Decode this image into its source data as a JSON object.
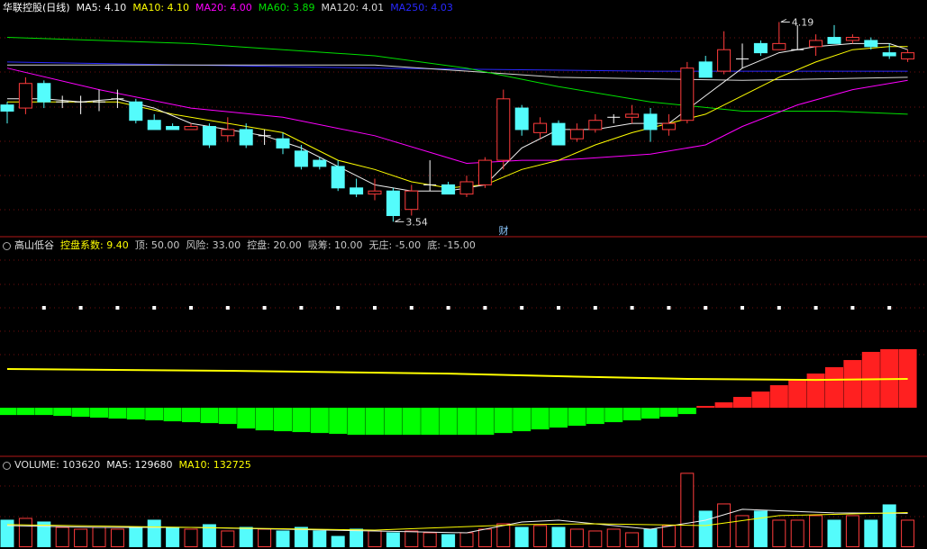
{
  "chart_data": [
    {
      "type": "candlestick",
      "title": "华联控股(日线)",
      "open": [
        3.92,
        3.91,
        3.99,
        3.93,
        3.93,
        3.93,
        3.94,
        3.93,
        3.87,
        3.85,
        3.84,
        3.85,
        3.82,
        3.84,
        3.82,
        3.81,
        3.77,
        3.74,
        3.72,
        3.65,
        3.63,
        3.64,
        3.58,
        3.66,
        3.66,
        3.63,
        3.66,
        3.74,
        3.91,
        3.83,
        3.86,
        3.81,
        3.84,
        3.88,
        3.88,
        3.89,
        3.84,
        3.87,
        4.06,
        4.03,
        4.07,
        4.12,
        4.1,
        4.1,
        4.11,
        4.14,
        4.13,
        4.13,
        4.09,
        4.07
      ],
      "high": [
        3.93,
        4.01,
        4.0,
        3.95,
        3.95,
        3.97,
        3.97,
        3.94,
        3.89,
        3.86,
        3.86,
        3.86,
        3.88,
        3.86,
        3.84,
        3.83,
        3.79,
        3.75,
        3.74,
        3.68,
        3.68,
        3.65,
        3.66,
        3.74,
        3.67,
        3.69,
        3.75,
        3.97,
        3.92,
        3.88,
        3.87,
        3.86,
        3.89,
        3.89,
        3.92,
        3.91,
        3.89,
        4.06,
        4.08,
        4.16,
        4.12,
        4.13,
        4.19,
        4.18,
        4.15,
        4.18,
        4.15,
        4.14,
        4.12,
        4.1
      ],
      "low": [
        3.86,
        3.89,
        3.91,
        3.91,
        3.89,
        3.9,
        3.91,
        3.86,
        3.84,
        3.84,
        3.84,
        3.78,
        3.8,
        3.78,
        3.79,
        3.76,
        3.71,
        3.71,
        3.64,
        3.62,
        3.61,
        3.54,
        3.56,
        3.64,
        3.63,
        3.62,
        3.65,
        3.71,
        3.82,
        3.81,
        3.79,
        3.8,
        3.83,
        3.86,
        3.86,
        3.8,
        3.82,
        3.86,
        4.01,
        4.02,
        4.04,
        4.08,
        4.1,
        4.1,
        4.08,
        4.12,
        4.12,
        4.1,
        4.07,
        4.06
      ],
      "close": [
        3.9,
        3.99,
        3.93,
        3.93,
        3.93,
        3.93,
        3.94,
        3.87,
        3.84,
        3.84,
        3.85,
        3.79,
        3.84,
        3.79,
        3.82,
        3.78,
        3.72,
        3.72,
        3.65,
        3.63,
        3.64,
        3.56,
        3.64,
        3.66,
        3.63,
        3.67,
        3.74,
        3.94,
        3.84,
        3.86,
        3.79,
        3.84,
        3.87,
        3.88,
        3.89,
        3.84,
        3.86,
        4.04,
        4.01,
        4.1,
        4.07,
        4.09,
        4.12,
        4.1,
        4.13,
        4.12,
        4.14,
        4.11,
        4.08,
        4.09
      ],
      "colors": {
        "up": "#ff3c3c",
        "down": "#54fcfc",
        "flat": "#ffffff"
      },
      "ylim": [
        3.5,
        4.25
      ],
      "lines": [
        {
          "name": "MA5",
          "label": "4.10",
          "color": "#f0f0f0",
          "x": [
            0,
            2,
            4,
            6,
            8,
            10,
            12,
            14,
            16,
            18,
            20,
            22,
            24,
            26,
            28,
            30,
            32,
            34,
            36,
            38,
            40,
            42,
            44,
            46,
            48,
            49
          ],
          "values": [
            3.94,
            3.94,
            3.93,
            3.94,
            3.91,
            3.86,
            3.84,
            3.82,
            3.78,
            3.72,
            3.66,
            3.64,
            3.64,
            3.66,
            3.78,
            3.84,
            3.84,
            3.86,
            3.86,
            3.95,
            4.04,
            4.09,
            4.11,
            4.12,
            4.12,
            4.1
          ]
        },
        {
          "name": "MA10",
          "label": "4.10",
          "color": "#ffff00",
          "x": [
            0,
            3,
            6,
            9,
            12,
            15,
            18,
            20,
            22,
            24,
            26,
            28,
            30,
            32,
            34,
            36,
            38,
            40,
            42,
            44,
            46,
            48,
            49
          ],
          "values": [
            3.93,
            3.93,
            3.93,
            3.89,
            3.86,
            3.83,
            3.74,
            3.71,
            3.67,
            3.65,
            3.66,
            3.71,
            3.74,
            3.79,
            3.83,
            3.86,
            3.89,
            3.95,
            4.01,
            4.06,
            4.1,
            4.11,
            4.11
          ]
        },
        {
          "name": "MA20",
          "label": "4.00",
          "color": "#ff00ff",
          "x": [
            0,
            5,
            10,
            15,
            20,
            25,
            28,
            30,
            35,
            38,
            40,
            43,
            46,
            49
          ],
          "values": [
            4.04,
            3.97,
            3.91,
            3.88,
            3.82,
            3.73,
            3.74,
            3.74,
            3.76,
            3.79,
            3.85,
            3.92,
            3.97,
            4.0
          ]
        },
        {
          "name": "MA60",
          "label": "3.89",
          "color": "#00e000",
          "x": [
            0,
            10,
            20,
            25,
            30,
            35,
            40,
            45,
            49
          ],
          "values": [
            4.14,
            4.12,
            4.08,
            4.04,
            3.98,
            3.93,
            3.9,
            3.9,
            3.89
          ]
        },
        {
          "name": "MA120",
          "label": "4.01",
          "color": "#d8d8d8",
          "x": [
            0,
            10,
            20,
            30,
            40,
            49
          ],
          "values": [
            4.05,
            4.05,
            4.05,
            4.01,
            4.0,
            4.01
          ]
        },
        {
          "name": "MA250",
          "label": "4.03",
          "color": "#2828ff",
          "x": [
            0,
            20,
            35,
            49
          ],
          "values": [
            4.06,
            4.04,
            4.03,
            4.03
          ]
        }
      ],
      "max_label": 4.19,
      "min_label": 3.54,
      "event": "财"
    },
    {
      "type": "bar_line",
      "title": "高山低谷",
      "series": [
        {
          "name": "控盘系数",
          "label": "9.40",
          "color_up": "#ff2020",
          "color_down": "#00ff00",
          "values": [
            -1.16,
            -1.16,
            -1.16,
            -1.3,
            -1.45,
            -1.59,
            -1.74,
            -1.88,
            -2.02,
            -2.17,
            -2.31,
            -2.46,
            -2.6,
            -3.33,
            -3.62,
            -3.76,
            -3.9,
            -4.05,
            -4.19,
            -4.34,
            -4.34,
            -4.34,
            -4.34,
            -4.34,
            -4.34,
            -4.34,
            -4.34,
            -4.05,
            -3.76,
            -3.47,
            -3.18,
            -2.89,
            -2.6,
            -2.31,
            -2.02,
            -1.74,
            -1.45,
            -1.01,
            0.29,
            0.87,
            1.74,
            2.6,
            3.62,
            4.63,
            5.49,
            6.51,
            7.66,
            8.97,
            9.4,
            9.4
          ]
        }
      ],
      "line": {
        "color": "#ffff00",
        "x": [
          0,
          12,
          24,
          30,
          37,
          44,
          49
        ],
        "values": [
          6.22,
          5.93,
          5.49,
          5.06,
          4.63,
          4.48,
          4.63
        ]
      },
      "levels": [
        {
          "name": "顶",
          "label": "50.00"
        },
        {
          "name": "风险",
          "label": "33.00"
        },
        {
          "name": "控盘",
          "label": "20.00"
        },
        {
          "name": "吸筹",
          "label": "10.00"
        },
        {
          "name": "无庄",
          "label": "-5.00"
        },
        {
          "name": "底",
          "label": "-15.00"
        }
      ],
      "ylim": [
        -7.5,
        25
      ]
    },
    {
      "type": "volume",
      "series": [
        {
          "name": "VOLUME",
          "values": [
            103600,
            110500,
            96700,
            76000,
            69100,
            76000,
            69100,
            76000,
            103600,
            76000,
            69100,
            86400,
            62200,
            76000,
            69100,
            62200,
            76000,
            62200,
            41400,
            69100,
            62200,
            55300,
            62200,
            55300,
            48400,
            55300,
            69100,
            89800,
            76000,
            82900,
            76000,
            69100,
            62200,
            69100,
            55300,
            69100,
            82900,
            283200,
            138200,
            165800,
            120900,
            138200,
            103600,
            103600,
            120900,
            103600,
            120900,
            103600,
            162300,
            103620
          ]
        }
      ],
      "lines": [
        {
          "name": "MA5",
          "color": "#f0f0f0",
          "x": [
            0,
            5,
            10,
            15,
            20,
            25,
            28,
            30,
            35,
            38,
            40,
            45,
            49
          ],
          "values": [
            82900,
            76000,
            76000,
            69100,
            62200,
            55300,
            96700,
            103600,
            69100,
            103600,
            145100,
            131300,
            129680
          ]
        },
        {
          "name": "MA10",
          "color": "#ffff00",
          "x": [
            0,
            10,
            20,
            28,
            32,
            38,
            42,
            49
          ],
          "values": [
            86400,
            76000,
            65600,
            86400,
            89800,
            82900,
            120900,
            132725
          ]
        }
      ],
      "ylim": [
        0,
        338000
      ]
    }
  ]
}
